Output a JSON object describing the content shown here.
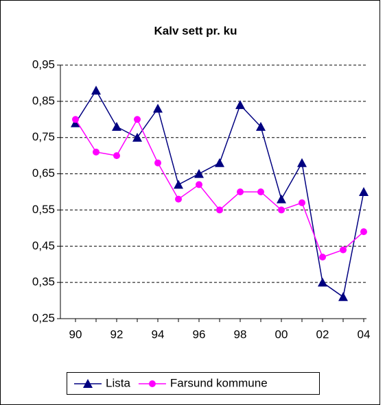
{
  "chart_data": {
    "type": "line",
    "title": "Kalv sett pr. ku",
    "categories": [
      "90",
      null,
      "92",
      null,
      "94",
      null,
      "96",
      null,
      "98",
      null,
      "00",
      null,
      "02",
      null,
      "04"
    ],
    "series": [
      {
        "name": "Lista",
        "color": "#000080",
        "marker": "triangle",
        "values": [
          0.79,
          0.88,
          0.78,
          0.75,
          0.83,
          0.62,
          0.65,
          0.68,
          0.84,
          0.78,
          0.58,
          0.68,
          0.35,
          0.31,
          0.6
        ]
      },
      {
        "name": "Farsund kommune",
        "color": "#ff00ff",
        "marker": "circle",
        "values": [
          0.8,
          0.71,
          0.7,
          0.8,
          0.68,
          0.58,
          0.62,
          0.55,
          0.6,
          0.6,
          0.55,
          0.57,
          0.42,
          0.44,
          0.49
        ]
      }
    ],
    "ylim": [
      0.25,
      0.95
    ],
    "yticks": [
      {
        "value": 0.25,
        "label": "0,25"
      },
      {
        "value": 0.35,
        "label": "0,35"
      },
      {
        "value": 0.45,
        "label": "0,45"
      },
      {
        "value": 0.55,
        "label": "0,55"
      },
      {
        "value": 0.65,
        "label": "0,65"
      },
      {
        "value": 0.75,
        "label": "0,75"
      },
      {
        "value": 0.85,
        "label": "0,85"
      },
      {
        "value": 0.95,
        "label": "0,95"
      }
    ],
    "grid": true,
    "legend": "bottom"
  }
}
